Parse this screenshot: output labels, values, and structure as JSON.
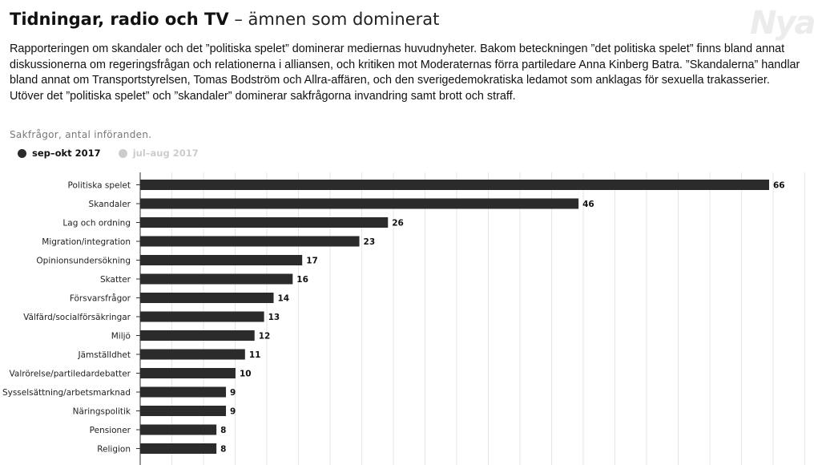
{
  "title": {
    "bold": "Tidningar, radio och TV",
    "rest": " – ämnen som dominerat"
  },
  "watermark": "Nya",
  "intro": [
    "Rapporteringen om skandaler och det ”politiska spelet” dominerar mediernas huvudnyheter. Bakom beteckningen ”det politiska spelet” finns bland annat diskussionerna om regeringsfrågan och relationerna i alliansen, och kritiken mot Moderaternas förra partiledare Anna Kinberg Batra. ”Skandalerna” handlar bland annat om Transportstyrelsen, Tomas Bodström och Allra-affären, och den sverigedemokratiska ledamot som anklagas för sexuella trakasserier.",
    "Utöver det ”politiska spelet” och ”skandaler” dominerar sakfrågorna invandring samt brott och straff."
  ],
  "chart_data": {
    "type": "bar",
    "orientation": "horizontal",
    "subtitle": "Sakfrågor, antal införanden.",
    "legend": [
      {
        "name": "sep–okt 2017",
        "color": "#2b2b2b",
        "active": true
      },
      {
        "name": "jul–aug 2017",
        "color": "#cccccc",
        "active": false
      }
    ],
    "legend_position": "top-left",
    "categories": [
      "Politiska spelet",
      "Skandaler",
      "Lag och ordning",
      "Migration/integration",
      "Opinionsundersökning",
      "Skatter",
      "Försvarsfrågor",
      "Välfärd/socialförsäkringar",
      "Miljö",
      "Jämställdhet",
      "Valrörelse/partiledardebatter",
      "Sysselsättning/arbetsmarknad",
      "Näringspolitik",
      "Pensioner",
      "Religion"
    ],
    "series": [
      {
        "name": "sep–okt 2017",
        "values": [
          66,
          46,
          26,
          23,
          17,
          16,
          14,
          13,
          12,
          11,
          10,
          9,
          9,
          8,
          8
        ]
      }
    ],
    "bar_color": "#2b2b2b",
    "xlim": [
      0,
      66
    ],
    "grid": "vertical"
  }
}
